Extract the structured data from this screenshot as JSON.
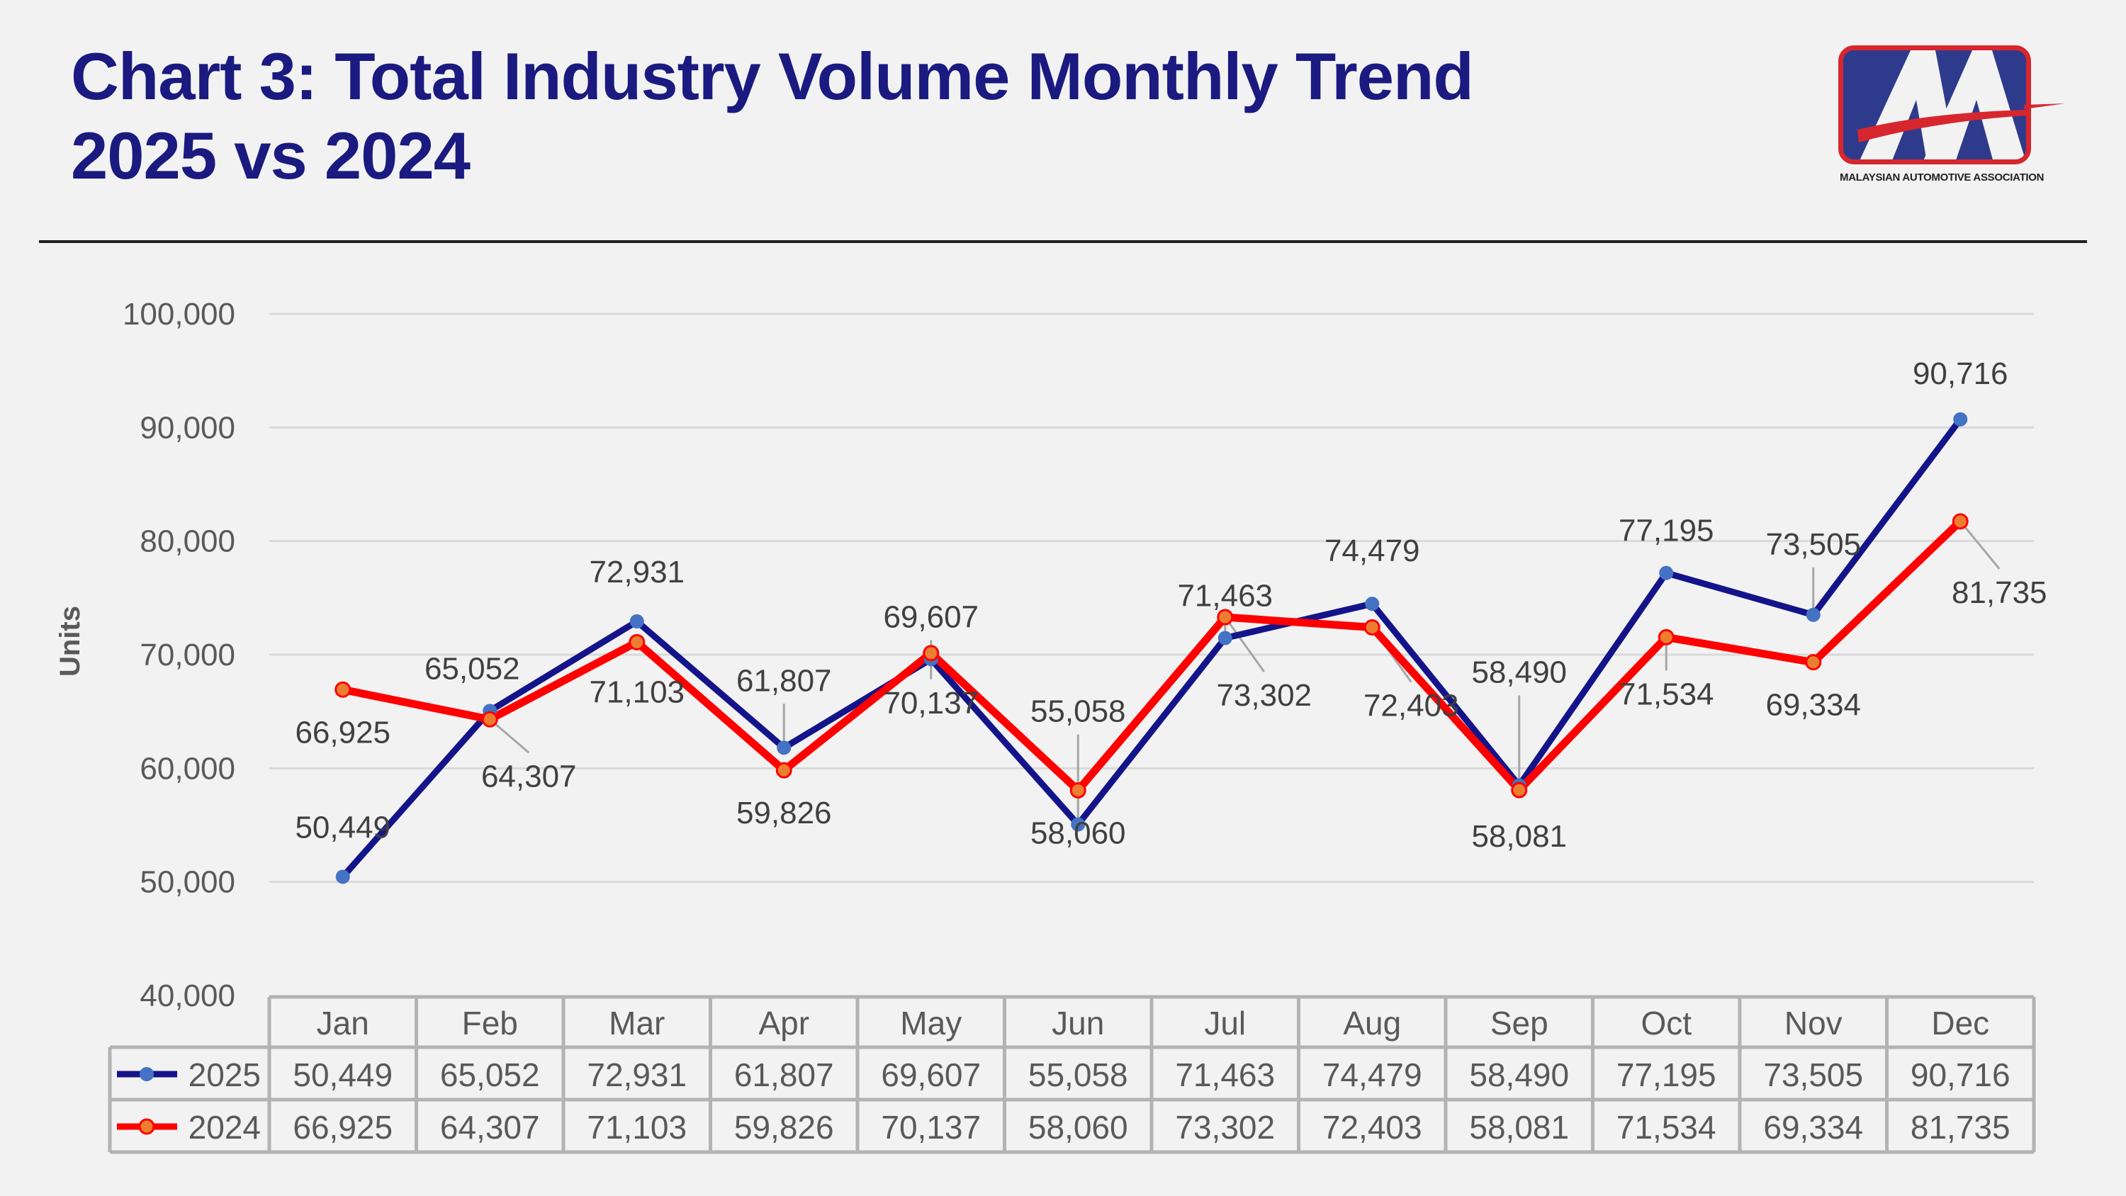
{
  "header": {
    "title_line1": "Chart 3: Total Industry Volume Monthly Trend",
    "title_line2": "2025 vs 2024"
  },
  "logo": {
    "name": "MAA logo",
    "caption": "MALAYSIAN AUTOMOTIVE ASSOCIATION",
    "colors": {
      "box": "#2e3a8c",
      "border": "#d7262e",
      "letters": "#f2f2f2",
      "swoosh": "#d7262e"
    }
  },
  "chart_data": {
    "type": "line",
    "title": "Chart 3: Total Industry Volume Monthly Trend 2025 vs 2024",
    "xlabel": "",
    "ylabel": "Units",
    "ylim": [
      40000,
      100000
    ],
    "yticks": [
      40000,
      50000,
      60000,
      70000,
      80000,
      90000,
      100000
    ],
    "ytick_labels": [
      "40,000",
      "50,000",
      "60,000",
      "70,000",
      "80,000",
      "90,000",
      "100,000"
    ],
    "grid": true,
    "legend": "data-table-left",
    "categories": [
      "Jan",
      "Feb",
      "Mar",
      "Apr",
      "May",
      "Jun",
      "Jul",
      "Aug",
      "Sep",
      "Oct",
      "Nov",
      "Dec"
    ],
    "series": [
      {
        "name": "2025",
        "line_color": "#14148a",
        "marker_color": "#4472c4",
        "values": [
          50449,
          65052,
          72931,
          61807,
          69607,
          55058,
          71463,
          74479,
          58490,
          77195,
          73505,
          90716
        ],
        "labels": [
          "50,449",
          "65,052",
          "72,931",
          "61,807",
          "69,607",
          "55,058",
          "71,463",
          "74,479",
          "58,490",
          "77,195",
          "73,505",
          "90,716"
        ]
      },
      {
        "name": "2024",
        "line_color": "#ff0000",
        "marker_color": "#ed7d31",
        "values": [
          66925,
          64307,
          71103,
          59826,
          70137,
          58060,
          73302,
          72403,
          58081,
          71534,
          69334,
          81735
        ],
        "labels": [
          "66,925",
          "64,307",
          "71,103",
          "59,826",
          "70,137",
          "58,060",
          "73,302",
          "72,403",
          "58,081",
          "71,534",
          "69,334",
          "81,735"
        ]
      }
    ],
    "data_table": true
  }
}
